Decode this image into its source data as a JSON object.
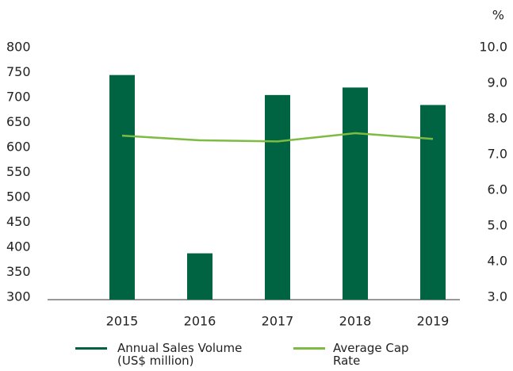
{
  "chart_data": {
    "type": "bar",
    "categories": [
      "2015",
      "2016",
      "2017",
      "2018",
      "2019"
    ],
    "series": [
      {
        "name": "Annual Sales Volume (US$ million)",
        "color": "#006341",
        "type": "bar",
        "values": [
          745,
          388,
          705,
          720,
          685
        ]
      },
      {
        "name": "Average Cap Rate",
        "color": "#7dbb42",
        "type": "line",
        "axis": "y2",
        "values": [
          7.53,
          7.4,
          7.37,
          7.6,
          7.44
        ]
      }
    ],
    "ylim": [
      300,
      800
    ],
    "yticks": [
      300,
      350,
      400,
      450,
      500,
      550,
      600,
      650,
      700,
      750,
      800
    ],
    "y2label": "%",
    "y2lim": [
      3,
      10
    ],
    "y2ticks": [
      {
        "value": 3,
        "label": "3.0"
      },
      {
        "value": 4,
        "label": "4.0"
      },
      {
        "value": 5,
        "label": "5.0"
      },
      {
        "value": 6,
        "label": "6.0"
      },
      {
        "value": 7,
        "label": "7.0"
      },
      {
        "value": 8,
        "label": "8.0"
      },
      {
        "value": 9,
        "label": "9.0"
      },
      {
        "value": 10,
        "label": "10.0"
      }
    ],
    "grid": false
  }
}
